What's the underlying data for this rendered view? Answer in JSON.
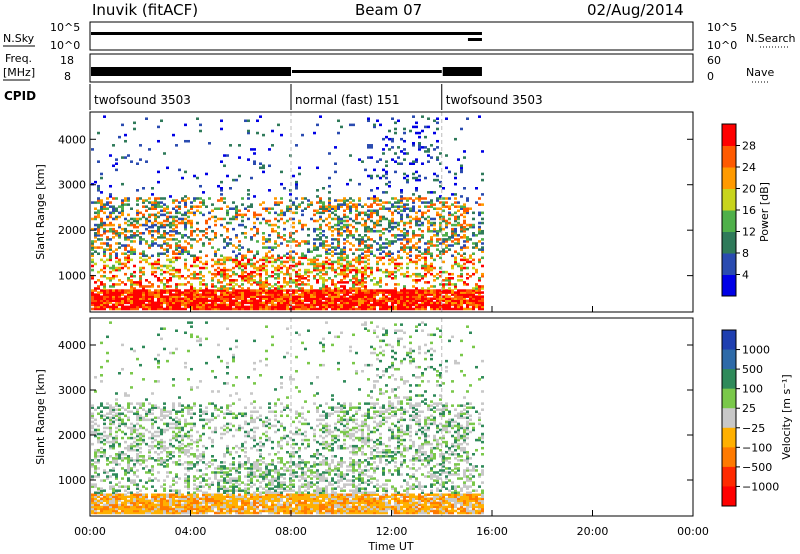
{
  "header": {
    "station": "Inuvik (fitACF)",
    "beam": "Beam 07",
    "date": "02/Aug/2014"
  },
  "nsky_panel": {
    "left_label": "N.Sky",
    "left_ticks": [
      "10^5",
      "10^0"
    ],
    "right_ticks": [
      "10^5",
      "10^0"
    ],
    "right_label": "N.Search",
    "level": 5.0
  },
  "freq_panel": {
    "left_label_1": "Freq.",
    "left_label_2": "[MHz]",
    "left_ticks": [
      "18",
      "8"
    ],
    "right_ticks": [
      "60",
      "0"
    ],
    "right_label": "Nave"
  },
  "cpid_panel": {
    "label": "CPID",
    "segments": [
      {
        "name": "twofsound 3503",
        "start_hr": 0.0,
        "end_hr": 8.0
      },
      {
        "name": "normal (fast) 151",
        "start_hr": 8.0,
        "end_hr": 14.0
      },
      {
        "name": "twofsound 3503",
        "start_hr": 14.0,
        "end_hr": 15.6
      }
    ]
  },
  "chart_data": [
    {
      "type": "heatmap",
      "quantity": "power",
      "ylabel": "Slant Range [km]",
      "y_ticks": [
        "1000",
        "2000",
        "3000",
        "4000"
      ],
      "ylim": [
        200,
        4600
      ],
      "xlim_hr": [
        0,
        24
      ],
      "data_extent_hr": [
        0.0,
        15.6
      ],
      "colorbar_label": "Power [dB]",
      "colorbar_ticks": [
        "4",
        "8",
        "12",
        "16",
        "20",
        "24",
        "28"
      ],
      "colorbar_colors": [
        "#0000e6",
        "#2a4bb0",
        "#2f7a5a",
        "#4fb04a",
        "#c8d41c",
        "#ff9a00",
        "#ff5a00",
        "#ff0000"
      ],
      "range_gate_bands": [
        {
          "from_km": 200,
          "to_km": 700,
          "dominant": "28"
        },
        {
          "from_km": 700,
          "to_km": 1400,
          "dominant": "12"
        },
        {
          "from_km": 1400,
          "to_km": 2700,
          "dominant": "16"
        },
        {
          "from_km": 2700,
          "to_km": 4500,
          "dominant": "4"
        }
      ]
    },
    {
      "type": "heatmap",
      "quantity": "velocity",
      "ylabel": "Slant Range [km]",
      "y_ticks": [
        "1000",
        "2000",
        "3000",
        "4000"
      ],
      "ylim": [
        200,
        4600
      ],
      "xlim_hr": [
        0,
        24
      ],
      "data_extent_hr": [
        0.0,
        15.6
      ],
      "colorbar_label": "Velocity [m s⁻¹]",
      "colorbar_ticks": [
        "1000",
        "500",
        "100",
        "25",
        "−25",
        "−100",
        "−500",
        "−1000"
      ],
      "colorbar_colors": [
        "#1f3fb0",
        "#2e6aa8",
        "#2f8a5a",
        "#7ac84a",
        "#c8c8c8",
        "#ffb000",
        "#ff7a00",
        "#ff2a00",
        "#ff0000"
      ],
      "range_gate_bands": [
        {
          "from_km": 200,
          "to_km": 700,
          "dominant": "−100"
        },
        {
          "from_km": 700,
          "to_km": 1400,
          "dominant": "25"
        },
        {
          "from_km": 1400,
          "to_km": 2700,
          "dominant": "25"
        },
        {
          "from_km": 2700,
          "to_km": 4500,
          "dominant": "100"
        }
      ]
    }
  ],
  "x_axis": {
    "label": "Time UT",
    "ticks": [
      "00:00",
      "04:00",
      "08:00",
      "12:00",
      "16:00",
      "20:00",
      "00:00"
    ],
    "tick_hours": [
      0,
      4,
      8,
      12,
      16,
      20,
      24
    ]
  },
  "mode_change_hours": [
    8.0,
    14.0
  ]
}
